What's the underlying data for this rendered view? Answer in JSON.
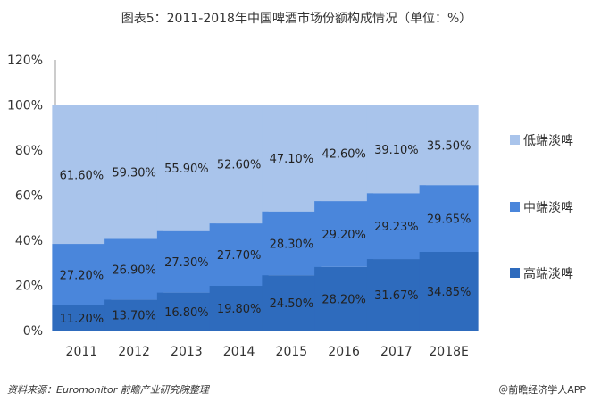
{
  "title": "图表5：2011-2018年中国啤酒市场份额构成情况（单位：%）",
  "source": "资料来源：Euromonitor 前瞻产业研究院整理",
  "credit": "＠前瞻经济学人APP",
  "colors": {
    "low": "#a9c4eb",
    "mid": "#4a86db",
    "high": "#2e6bbd"
  },
  "chart_data": {
    "type": "bar",
    "stacked": true,
    "categories": [
      "2011",
      "2012",
      "2013",
      "2014",
      "2015",
      "2016",
      "2017",
      "2018E"
    ],
    "series": [
      {
        "name": "高端淡啤",
        "color_key": "high",
        "values": [
          11.2,
          13.7,
          16.8,
          19.8,
          24.5,
          28.2,
          31.67,
          34.85
        ],
        "labels": [
          "11.20%",
          "13.70%",
          "16.80%",
          "19.80%",
          "24.50%",
          "28.20%",
          "31.67%",
          "34.85%"
        ]
      },
      {
        "name": "中端淡啤",
        "color_key": "mid",
        "values": [
          27.2,
          26.9,
          27.3,
          27.7,
          28.3,
          29.2,
          29.23,
          29.65
        ],
        "labels": [
          "27.20%",
          "26.90%",
          "27.30%",
          "27.70%",
          "28.30%",
          "29.20%",
          "29.23%",
          "29.65%"
        ]
      },
      {
        "name": "低端淡啤",
        "color_key": "low",
        "values": [
          61.6,
          59.3,
          55.9,
          52.6,
          47.1,
          42.6,
          39.1,
          35.5
        ],
        "labels": [
          "61.60%",
          "59.30%",
          "55.90%",
          "52.60%",
          "47.10%",
          "42.60%",
          "39.10%",
          "35.50%"
        ]
      }
    ],
    "legend": [
      "低端淡啤",
      "中端淡啤",
      "高端淡啤"
    ],
    "yticks": [
      "0%",
      "20%",
      "40%",
      "60%",
      "80%",
      "100%",
      "120%"
    ],
    "ylim": [
      0,
      120
    ],
    "legend_position": "right",
    "grid": false
  }
}
